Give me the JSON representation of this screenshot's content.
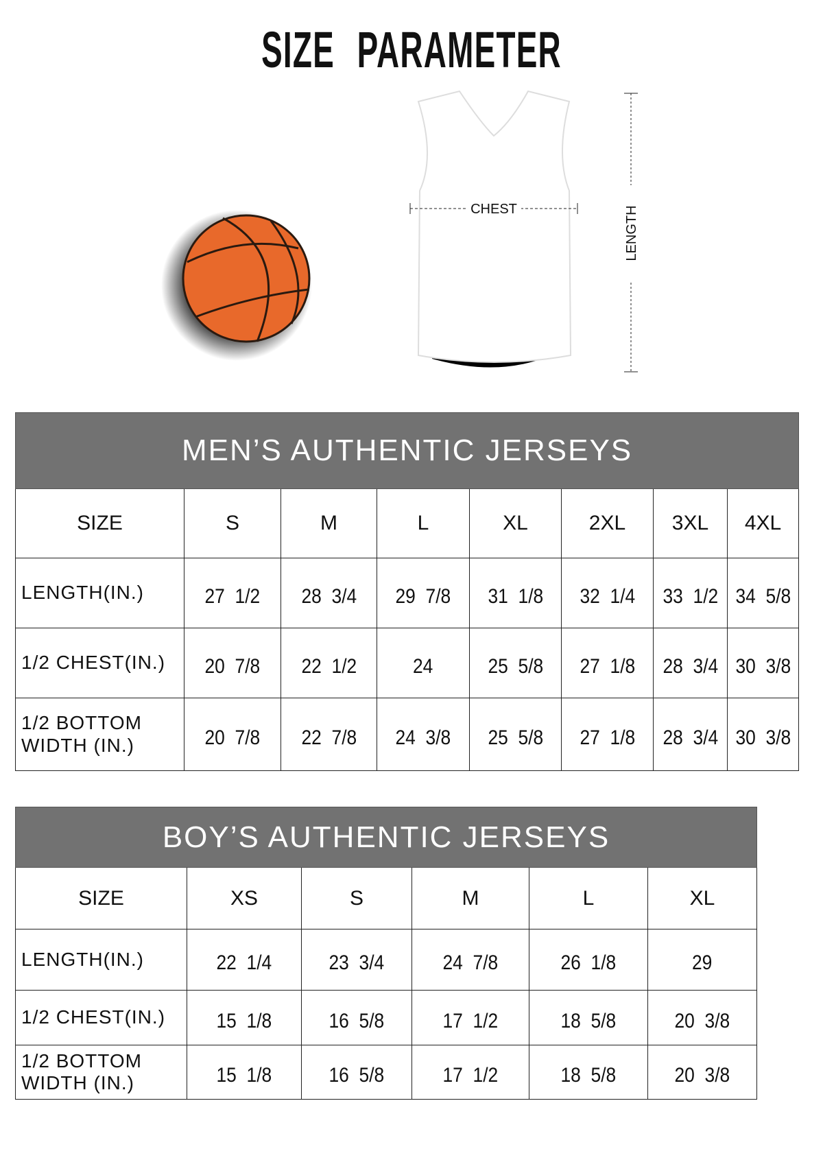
{
  "title": "SIZE PARAMETER",
  "diagram": {
    "chest_label": "CHEST",
    "length_label": "LENGTH",
    "ball_color": "#e8692b",
    "header_color": "#727272"
  },
  "mens": {
    "title": "MEN’S AUTHENTIC JERSEYS",
    "size_label": "SIZE",
    "sizes": [
      "S",
      "M",
      "L",
      "XL",
      "2XL",
      "3XL",
      "4XL"
    ],
    "rows": [
      {
        "label": "LENGTH(IN.)",
        "values": [
          "27  1/2",
          "28  3/4",
          "29  7/8",
          "31  1/8",
          "32  1/4",
          "33  1/2",
          "34  5/8"
        ]
      },
      {
        "label": "1/2 CHEST(IN.)",
        "values": [
          "20  7/8",
          "22  1/2",
          "24",
          "25  5/8",
          "27  1/8",
          "28  3/4",
          "30  3/8"
        ]
      },
      {
        "label": "1/2 BOTTOM WIDTH  (IN.)",
        "values": [
          "20  7/8",
          "22  7/8",
          "24  3/8",
          "25  5/8",
          "27  1/8",
          "28  3/4",
          "30  3/8"
        ]
      }
    ]
  },
  "boys": {
    "title": "BOY’S AUTHENTIC JERSEYS",
    "size_label": "SIZE",
    "sizes": [
      "XS",
      "S",
      "M",
      "L",
      "XL"
    ],
    "rows": [
      {
        "label": "LENGTH(IN.)",
        "values": [
          "22  1/4",
          "23  3/4",
          "24  7/8",
          "26  1/8",
          "29"
        ]
      },
      {
        "label": "1/2 CHEST(IN.)",
        "values": [
          "15  1/8",
          "16  5/8",
          "17  1/2",
          "18  5/8",
          "20  3/8"
        ]
      },
      {
        "label": "1/2 BOTTOM WIDTH  (IN.)",
        "values": [
          "15  1/8",
          "16  5/8",
          "17  1/2",
          "18  5/8",
          "20  3/8"
        ]
      }
    ]
  }
}
